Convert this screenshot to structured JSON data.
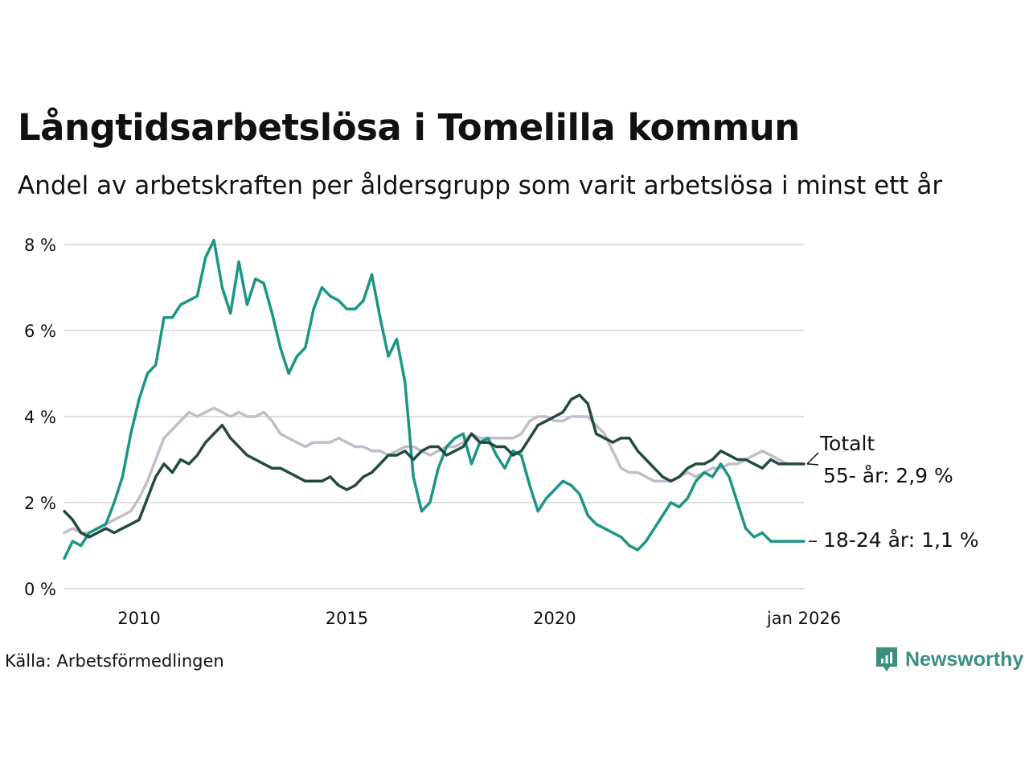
{
  "header": {
    "title": "Långtidsarbetslösa i Tomelilla kommun",
    "subtitle": "Andel av arbetskraften per åldersgrupp som varit arbetslösa i minst ett år"
  },
  "footer": {
    "source": "Källa: Arbetsförmedlingen",
    "brand": "Newsworthy"
  },
  "colors": {
    "youth": "#1b9584",
    "total": "#234a42",
    "senior": "#c1bdcb",
    "grid": "#dedede"
  },
  "chart_data": {
    "type": "line",
    "title": "Långtidsarbetslösa i Tomelilla kommun",
    "xlabel": "",
    "ylabel": "",
    "xlim": [
      2008.2,
      2026.0
    ],
    "ylim": [
      0,
      8
    ],
    "y_ticks": [
      0,
      2,
      4,
      6,
      8
    ],
    "y_tick_labels": [
      "0 %",
      "2 %",
      "4 %",
      "6 %",
      "8 %"
    ],
    "x_ticks": [
      2010,
      2015,
      2020,
      2026
    ],
    "x_tick_labels": [
      "2010",
      "2015",
      "2020",
      "jan 2026"
    ],
    "grid": true,
    "legend": "end-labels-right",
    "end_labels": {
      "total": "Totalt",
      "senior": "55- år: 2,9 %",
      "youth": "18-24 år: 1,1 %"
    },
    "series": [
      {
        "name": "18-24 år",
        "key": "youth",
        "x": [
          2008.2,
          2008.4,
          2008.6,
          2008.8,
          2009.0,
          2009.2,
          2009.4,
          2009.6,
          2009.8,
          2010.0,
          2010.2,
          2010.4,
          2010.6,
          2010.8,
          2011.0,
          2011.2,
          2011.4,
          2011.6,
          2011.8,
          2012.0,
          2012.2,
          2012.4,
          2012.6,
          2012.8,
          2013.0,
          2013.2,
          2013.4,
          2013.6,
          2013.8,
          2014.0,
          2014.2,
          2014.4,
          2014.6,
          2014.8,
          2015.0,
          2015.2,
          2015.4,
          2015.6,
          2015.8,
          2016.0,
          2016.2,
          2016.4,
          2016.6,
          2016.8,
          2017.0,
          2017.2,
          2017.4,
          2017.6,
          2017.8,
          2018.0,
          2018.2,
          2018.4,
          2018.6,
          2018.8,
          2019.0,
          2019.2,
          2019.4,
          2019.6,
          2019.8,
          2020.0,
          2020.2,
          2020.4,
          2020.6,
          2020.8,
          2021.0,
          2021.2,
          2021.4,
          2021.6,
          2021.8,
          2022.0,
          2022.2,
          2022.4,
          2022.6,
          2022.8,
          2023.0,
          2023.2,
          2023.4,
          2023.6,
          2023.8,
          2024.0,
          2024.2,
          2024.4,
          2024.6,
          2024.8,
          2025.0,
          2025.2,
          2025.4,
          2025.6,
          2025.8,
          2026.0
        ],
        "values": [
          0.7,
          1.1,
          1.0,
          1.3,
          1.4,
          1.5,
          2.0,
          2.6,
          3.6,
          4.4,
          5.0,
          5.2,
          6.3,
          6.3,
          6.6,
          6.7,
          6.8,
          7.7,
          8.1,
          7.0,
          6.4,
          7.6,
          6.6,
          7.2,
          7.1,
          6.4,
          5.6,
          5.0,
          5.4,
          5.6,
          6.5,
          7.0,
          6.8,
          6.7,
          6.5,
          6.5,
          6.7,
          7.3,
          6.3,
          5.4,
          5.8,
          4.8,
          2.6,
          1.8,
          2.0,
          2.8,
          3.3,
          3.5,
          3.6,
          2.9,
          3.4,
          3.5,
          3.1,
          2.8,
          3.2,
          3.1,
          2.4,
          1.8,
          2.1,
          2.3,
          2.5,
          2.4,
          2.2,
          1.7,
          1.5,
          1.4,
          1.3,
          1.2,
          1.0,
          0.9,
          1.1,
          1.4,
          1.7,
          2.0,
          1.9,
          2.1,
          2.5,
          2.7,
          2.6,
          2.9,
          2.6,
          2.0,
          1.4,
          1.2,
          1.3,
          1.1,
          1.1,
          1.1,
          1.1,
          1.1
        ]
      },
      {
        "name": "Totalt",
        "key": "total",
        "x": [
          2008.2,
          2008.4,
          2008.6,
          2008.8,
          2009.0,
          2009.2,
          2009.4,
          2009.6,
          2009.8,
          2010.0,
          2010.2,
          2010.4,
          2010.6,
          2010.8,
          2011.0,
          2011.2,
          2011.4,
          2011.6,
          2011.8,
          2012.0,
          2012.2,
          2012.4,
          2012.6,
          2012.8,
          2013.0,
          2013.2,
          2013.4,
          2013.6,
          2013.8,
          2014.0,
          2014.2,
          2014.4,
          2014.6,
          2014.8,
          2015.0,
          2015.2,
          2015.4,
          2015.6,
          2015.8,
          2016.0,
          2016.2,
          2016.4,
          2016.6,
          2016.8,
          2017.0,
          2017.2,
          2017.4,
          2017.6,
          2017.8,
          2018.0,
          2018.2,
          2018.4,
          2018.6,
          2018.8,
          2019.0,
          2019.2,
          2019.4,
          2019.6,
          2019.8,
          2020.0,
          2020.2,
          2020.4,
          2020.6,
          2020.8,
          2021.0,
          2021.2,
          2021.4,
          2021.6,
          2021.8,
          2022.0,
          2022.2,
          2022.4,
          2022.6,
          2022.8,
          2023.0,
          2023.2,
          2023.4,
          2023.6,
          2023.8,
          2024.0,
          2024.2,
          2024.4,
          2024.6,
          2024.8,
          2025.0,
          2025.2,
          2025.4,
          2025.6,
          2025.8,
          2026.0
        ],
        "values": [
          1.8,
          1.6,
          1.3,
          1.2,
          1.3,
          1.4,
          1.3,
          1.4,
          1.5,
          1.6,
          2.1,
          2.6,
          2.9,
          2.7,
          3.0,
          2.9,
          3.1,
          3.4,
          3.6,
          3.8,
          3.5,
          3.3,
          3.1,
          3.0,
          2.9,
          2.8,
          2.8,
          2.7,
          2.6,
          2.5,
          2.5,
          2.5,
          2.6,
          2.4,
          2.3,
          2.4,
          2.6,
          2.7,
          2.9,
          3.1,
          3.1,
          3.2,
          3.0,
          3.2,
          3.3,
          3.3,
          3.1,
          3.2,
          3.3,
          3.6,
          3.4,
          3.4,
          3.3,
          3.3,
          3.1,
          3.2,
          3.5,
          3.8,
          3.9,
          4.0,
          4.1,
          4.4,
          4.5,
          4.3,
          3.6,
          3.5,
          3.4,
          3.5,
          3.5,
          3.2,
          3.0,
          2.8,
          2.6,
          2.5,
          2.6,
          2.8,
          2.9,
          2.9,
          3.0,
          3.2,
          3.1,
          3.0,
          3.0,
          2.9,
          2.8,
          3.0,
          2.9,
          2.9,
          2.9,
          2.9
        ]
      },
      {
        "name": "55- år",
        "key": "senior",
        "x": [
          2008.2,
          2008.4,
          2008.6,
          2008.8,
          2009.0,
          2009.2,
          2009.4,
          2009.6,
          2009.8,
          2010.0,
          2010.2,
          2010.4,
          2010.6,
          2010.8,
          2011.0,
          2011.2,
          2011.4,
          2011.6,
          2011.8,
          2012.0,
          2012.2,
          2012.4,
          2012.6,
          2012.8,
          2013.0,
          2013.2,
          2013.4,
          2013.6,
          2013.8,
          2014.0,
          2014.2,
          2014.4,
          2014.6,
          2014.8,
          2015.0,
          2015.2,
          2015.4,
          2015.6,
          2015.8,
          2016.0,
          2016.2,
          2016.4,
          2016.6,
          2016.8,
          2017.0,
          2017.2,
          2017.4,
          2017.6,
          2017.8,
          2018.0,
          2018.2,
          2018.4,
          2018.6,
          2018.8,
          2019.0,
          2019.2,
          2019.4,
          2019.6,
          2019.8,
          2020.0,
          2020.2,
          2020.4,
          2020.6,
          2020.8,
          2021.0,
          2021.2,
          2021.4,
          2021.6,
          2021.8,
          2022.0,
          2022.2,
          2022.4,
          2022.6,
          2022.8,
          2023.0,
          2023.2,
          2023.4,
          2023.6,
          2023.8,
          2024.0,
          2024.2,
          2024.4,
          2024.6,
          2024.8,
          2025.0,
          2025.2,
          2025.4,
          2025.6,
          2025.8,
          2026.0
        ],
        "values": [
          1.3,
          1.4,
          1.3,
          1.3,
          1.4,
          1.5,
          1.6,
          1.7,
          1.8,
          2.1,
          2.5,
          3.0,
          3.5,
          3.7,
          3.9,
          4.1,
          4.0,
          4.1,
          4.2,
          4.1,
          4.0,
          4.1,
          4.0,
          4.0,
          4.1,
          3.9,
          3.6,
          3.5,
          3.4,
          3.3,
          3.4,
          3.4,
          3.4,
          3.5,
          3.4,
          3.3,
          3.3,
          3.2,
          3.2,
          3.1,
          3.2,
          3.3,
          3.3,
          3.2,
          3.1,
          3.2,
          3.3,
          3.3,
          3.4,
          3.6,
          3.5,
          3.5,
          3.5,
          3.5,
          3.5,
          3.6,
          3.9,
          4.0,
          4.0,
          3.9,
          3.9,
          4.0,
          4.0,
          4.0,
          3.8,
          3.6,
          3.2,
          2.8,
          2.7,
          2.7,
          2.6,
          2.5,
          2.5,
          2.5,
          2.6,
          2.7,
          2.6,
          2.7,
          2.8,
          2.8,
          2.9,
          2.9,
          3.0,
          3.1,
          3.2,
          3.1,
          3.0,
          2.9,
          2.9,
          2.9
        ]
      }
    ]
  }
}
